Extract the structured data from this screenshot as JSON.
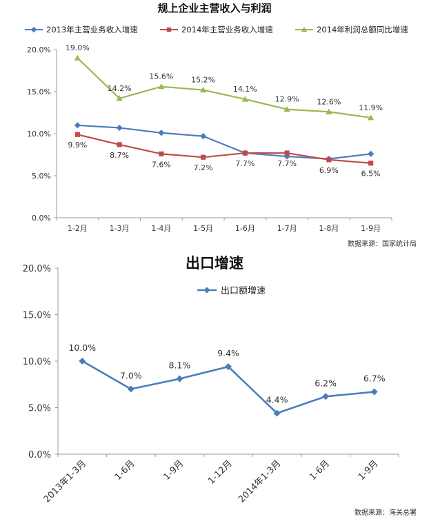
{
  "chart_data": [
    {
      "type": "line",
      "title": "规上企业主营收入与利润",
      "categories": [
        "1-2月",
        "1-3月",
        "1-4月",
        "1-5月",
        "1-6月",
        "1-7月",
        "1-8月",
        "1-9月"
      ],
      "ylim": [
        0,
        20
      ],
      "yticks": [
        "0.0%",
        "5.0%",
        "10.0%",
        "15.0%",
        "20.0%"
      ],
      "grid": false,
      "legend_position": "top",
      "series": [
        {
          "name": "2013年主营业务收入增速",
          "color": "#4a7ebb",
          "marker": "diamond",
          "values": [
            11.0,
            10.7,
            10.1,
            9.7,
            7.7,
            7.3,
            7.0,
            7.6
          ],
          "labels": []
        },
        {
          "name": "2014年主营业务收入增速",
          "color": "#be4b48",
          "marker": "square",
          "values": [
            9.9,
            8.7,
            7.6,
            7.2,
            7.7,
            7.7,
            6.9,
            6.5
          ],
          "labels": [
            "9.9%",
            "8.7%",
            "7.6%",
            "7.2%",
            "7.7%",
            "7.7%",
            "6.9%",
            "6.5%"
          ]
        },
        {
          "name": "2014年利润总额同比增速",
          "color": "#98b954",
          "marker": "triangle",
          "values": [
            19.0,
            14.2,
            15.6,
            15.2,
            14.1,
            12.9,
            12.6,
            11.9
          ],
          "labels": [
            "19.0%",
            "14.2%",
            "15.6%",
            "15.2%",
            "14.1%",
            "12.9%",
            "12.6%",
            "11.9%"
          ]
        }
      ],
      "source": "数据来源：国家统计局"
    },
    {
      "type": "line",
      "title": "出口增速",
      "categories": [
        "2013年1-3月",
        "1-6月",
        "1-9月",
        "1-12月",
        "2014年1-3月",
        "1-6月",
        "1-9月"
      ],
      "ylim": [
        0,
        20
      ],
      "yticks": [
        "0.0%",
        "5.0%",
        "10.0%",
        "15.0%",
        "20.0%"
      ],
      "grid": false,
      "legend_position": "top",
      "series": [
        {
          "name": "出口额增速",
          "color": "#4a7ebb",
          "marker": "diamond",
          "values": [
            10.0,
            7.0,
            8.1,
            9.4,
            4.4,
            6.2,
            6.7
          ],
          "labels": [
            "10.0%",
            "7.0%",
            "8.1%",
            "9.4%",
            "4.4%",
            "6.2%",
            "6.7%"
          ]
        }
      ],
      "source": "数据来源：海关总署"
    }
  ]
}
